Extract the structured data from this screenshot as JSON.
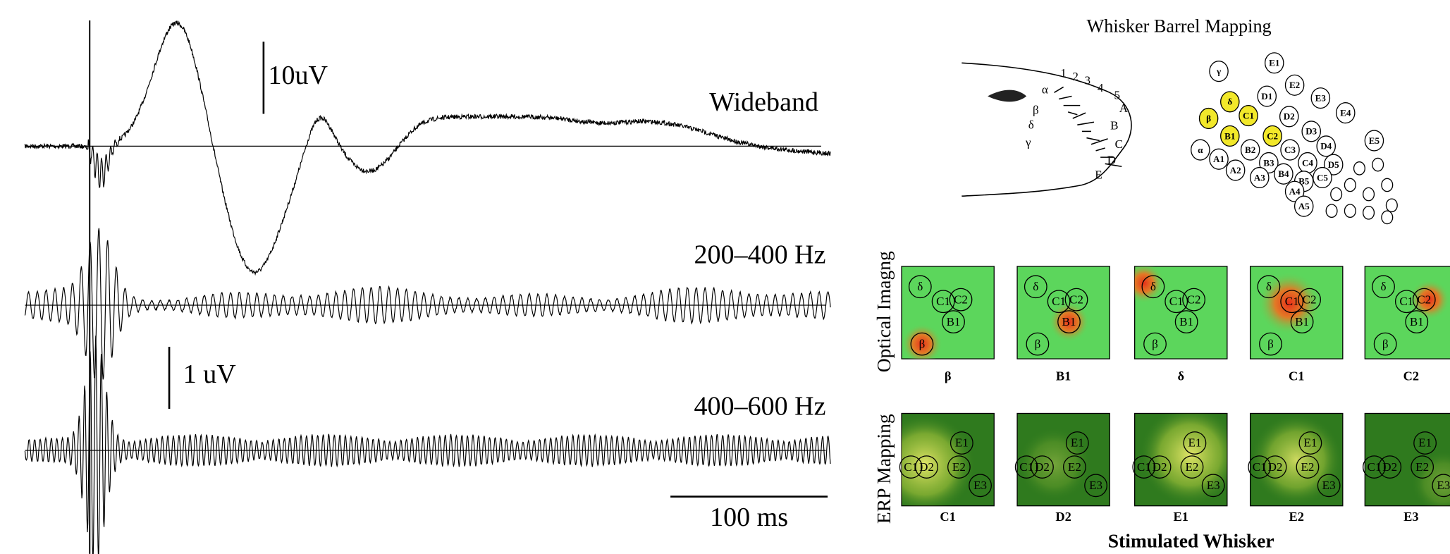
{
  "traces": {
    "scale_top": "10uV",
    "wideband": "Wideband",
    "band_low": "200–400 Hz",
    "scale_mid": "1  uV",
    "band_high": "400–600 Hz",
    "time_bar": "100 ms"
  },
  "barrel_mapping": {
    "title": "Whisker Barrel Mapping",
    "snout_labels": [
      "1",
      "2",
      "3",
      "4",
      "5",
      "A",
      "B",
      "C",
      "D",
      "E",
      "α",
      "β",
      "δ",
      "γ"
    ],
    "barrel_labels": [
      "γ",
      "E1",
      "E2",
      "δ",
      "D1",
      "E3",
      "β",
      "C1",
      "D2",
      "E4",
      "B1",
      "C2",
      "D3",
      "E5",
      "α",
      "B2",
      "C3",
      "D4",
      "A1",
      "A2",
      "B3",
      "C4",
      "D5",
      "A3",
      "B4",
      "B5",
      "C5",
      "A4",
      "A5"
    ]
  },
  "optical_imaging": {
    "row_label": "Optical Imagng",
    "panels": [
      "β",
      "B1",
      "δ",
      "C1",
      "C2"
    ],
    "overlay_labels": [
      "δ",
      "C1",
      "C2",
      "B1",
      "β"
    ]
  },
  "erp_mapping": {
    "row_label": "ERP Mapping",
    "panels": [
      "C1",
      "D2",
      "E1",
      "E2",
      "E3"
    ],
    "overlay_labels": [
      "C1",
      "D2",
      "E1",
      "E2",
      "E3"
    ]
  },
  "x_label": "Stimulated Whisker"
}
